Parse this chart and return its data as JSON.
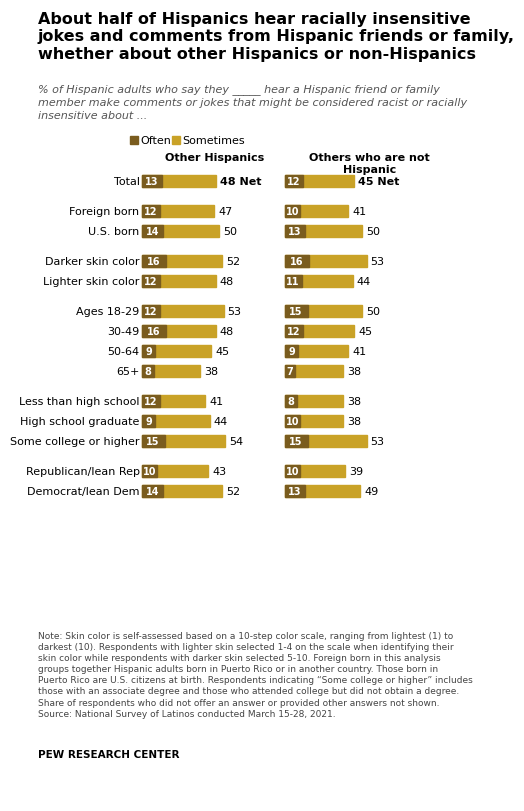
{
  "title": "About half of Hispanics hear racially insensitive\njokes and comments from Hispanic friends or family,\nwhether about other Hispanics or non-Hispanics",
  "subtitle": "% of Hispanic adults who say they _____ hear a Hispanic friend or family\nmember make comments or jokes that might be considered racist or racially\ninsensitive about ...",
  "col1_header": "Other Hispanics",
  "col2_header": "Others who are not\nHispanic",
  "legend_often": "Often",
  "legend_sometimes": "Sometimes",
  "color_often": "#7a5c1e",
  "color_sometimes": "#c9a227",
  "rows": [
    {
      "label": "Total",
      "l1": 13,
      "l2": 48,
      "net1": "48 Net",
      "r1": 12,
      "r2": 45,
      "net2": "45 Net",
      "bold": true,
      "gap_after": true
    },
    {
      "label": "Foreign born",
      "l1": 12,
      "l2": 47,
      "net1": "47",
      "r1": 10,
      "r2": 41,
      "net2": "41",
      "bold": false,
      "gap_after": false
    },
    {
      "label": "U.S. born",
      "l1": 14,
      "l2": 50,
      "net1": "50",
      "r1": 13,
      "r2": 50,
      "net2": "50",
      "bold": false,
      "gap_after": true
    },
    {
      "label": "Darker skin color",
      "l1": 16,
      "l2": 52,
      "net1": "52",
      "r1": 16,
      "r2": 53,
      "net2": "53",
      "bold": false,
      "gap_after": false
    },
    {
      "label": "Lighter skin color",
      "l1": 12,
      "l2": 48,
      "net1": "48",
      "r1": 11,
      "r2": 44,
      "net2": "44",
      "bold": false,
      "gap_after": true
    },
    {
      "label": "Ages 18-29",
      "l1": 12,
      "l2": 53,
      "net1": "53",
      "r1": 15,
      "r2": 50,
      "net2": "50",
      "bold": false,
      "gap_after": false
    },
    {
      "label": "30-49",
      "l1": 16,
      "l2": 48,
      "net1": "48",
      "r1": 12,
      "r2": 45,
      "net2": "45",
      "bold": false,
      "gap_after": false
    },
    {
      "label": "50-64",
      "l1": 9,
      "l2": 45,
      "net1": "45",
      "r1": 9,
      "r2": 41,
      "net2": "41",
      "bold": false,
      "gap_after": false
    },
    {
      "label": "65+",
      "l1": 8,
      "l2": 38,
      "net1": "38",
      "r1": 7,
      "r2": 38,
      "net2": "38",
      "bold": false,
      "gap_after": true
    },
    {
      "label": "Less than high school",
      "l1": 12,
      "l2": 41,
      "net1": "41",
      "r1": 8,
      "r2": 38,
      "net2": "38",
      "bold": false,
      "gap_after": false
    },
    {
      "label": "High school graduate",
      "l1": 9,
      "l2": 44,
      "net1": "44",
      "r1": 10,
      "r2": 38,
      "net2": "38",
      "bold": false,
      "gap_after": false
    },
    {
      "label": "Some college or higher",
      "l1": 15,
      "l2": 54,
      "net1": "54",
      "r1": 15,
      "r2": 53,
      "net2": "53",
      "bold": false,
      "gap_after": true
    },
    {
      "label": "Republican/lean Rep",
      "l1": 10,
      "l2": 43,
      "net1": "43",
      "r1": 10,
      "r2": 39,
      "net2": "39",
      "bold": false,
      "gap_after": false
    },
    {
      "label": "Democrat/lean Dem",
      "l1": 14,
      "l2": 52,
      "net1": "52",
      "r1": 13,
      "r2": 49,
      "net2": "49",
      "bold": false,
      "gap_after": false
    }
  ],
  "note": "Note: Skin color is self-assessed based on a 10-step color scale, ranging from lightest (1) to\ndarkest (10). Respondents with lighter skin selected 1-4 on the scale when identifying their\nskin color while respondents with darker skin selected 5-10. Foreign born in this analysis\ngroups together Hispanic adults born in Puerto Rico or in another country. Those born in\nPuerto Rico are U.S. citizens at birth. Respondents indicating “Some college or higher” includes\nthose with an associate degree and those who attended college but did not obtain a degree.\nShare of respondents who did not offer an answer or provided other answers not shown.\nSource: National Survey of Latinos conducted March 15-28, 2021.",
  "source": "PEW RESEARCH CENTER",
  "title_fontsize": 11.5,
  "subtitle_fontsize": 8.0,
  "label_fontsize": 8.0,
  "bar_label_fontsize": 7.0,
  "net_fontsize": 8.0,
  "note_fontsize": 6.5,
  "source_fontsize": 7.5
}
